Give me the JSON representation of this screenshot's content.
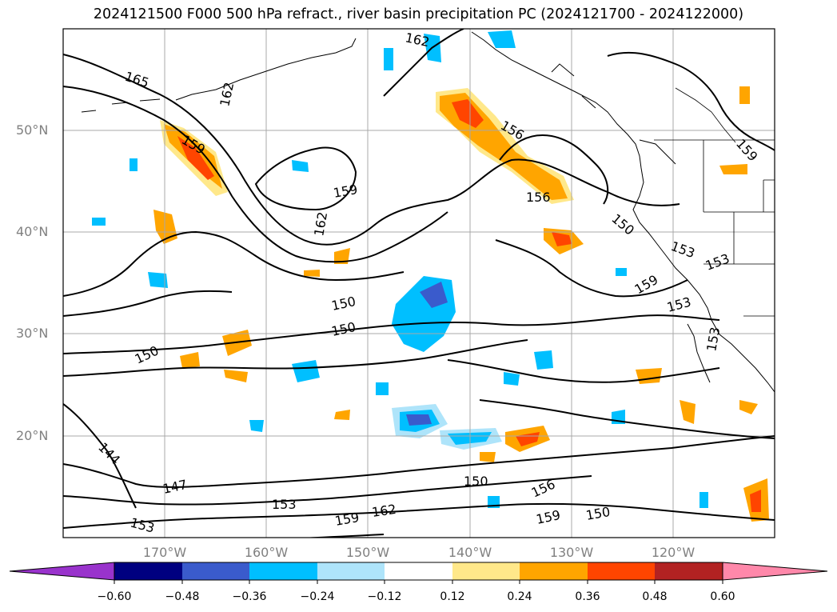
{
  "title": "2024121500 F000 500 hPa refract., river basin precipitation PC (2024121700 - 2024122000)",
  "map": {
    "lat_labels": [
      "50°N",
      "40°N",
      "30°N",
      "20°N"
    ],
    "lon_labels": [
      "170°W",
      "160°W",
      "150°W",
      "140°W",
      "130°W",
      "120°W"
    ],
    "extent": {
      "lon_min": -180,
      "lon_max": -110,
      "lat_min": 10,
      "lat_max": 60
    },
    "gridlines": true,
    "contour_labels": [
      "162",
      "165",
      "162",
      "159",
      "159",
      "162",
      "156",
      "150",
      "159",
      "156",
      "153",
      "159",
      "153",
      "153",
      "153",
      "150",
      "150",
      "144",
      "147",
      "153",
      "150",
      "156",
      "162",
      "159",
      "159",
      "150",
      "153",
      "150"
    ]
  },
  "colorbar": {
    "tick_labels": [
      "−0.60",
      "−0.48",
      "−0.36",
      "−0.24",
      "−0.12",
      "0.12",
      "0.24",
      "0.36",
      "0.48",
      "0.60"
    ],
    "colors": {
      "under": "#9933cc",
      "n060": "#000080",
      "n048": "#3a5bcc",
      "n036": "#00bfff",
      "n024": "#aee4fa",
      "zero": "#ffffff",
      "p012": "#ffe88a",
      "p024": "#ffa500",
      "p036": "#ff4500",
      "p048": "#b22222",
      "over": "#ff88aa"
    }
  }
}
